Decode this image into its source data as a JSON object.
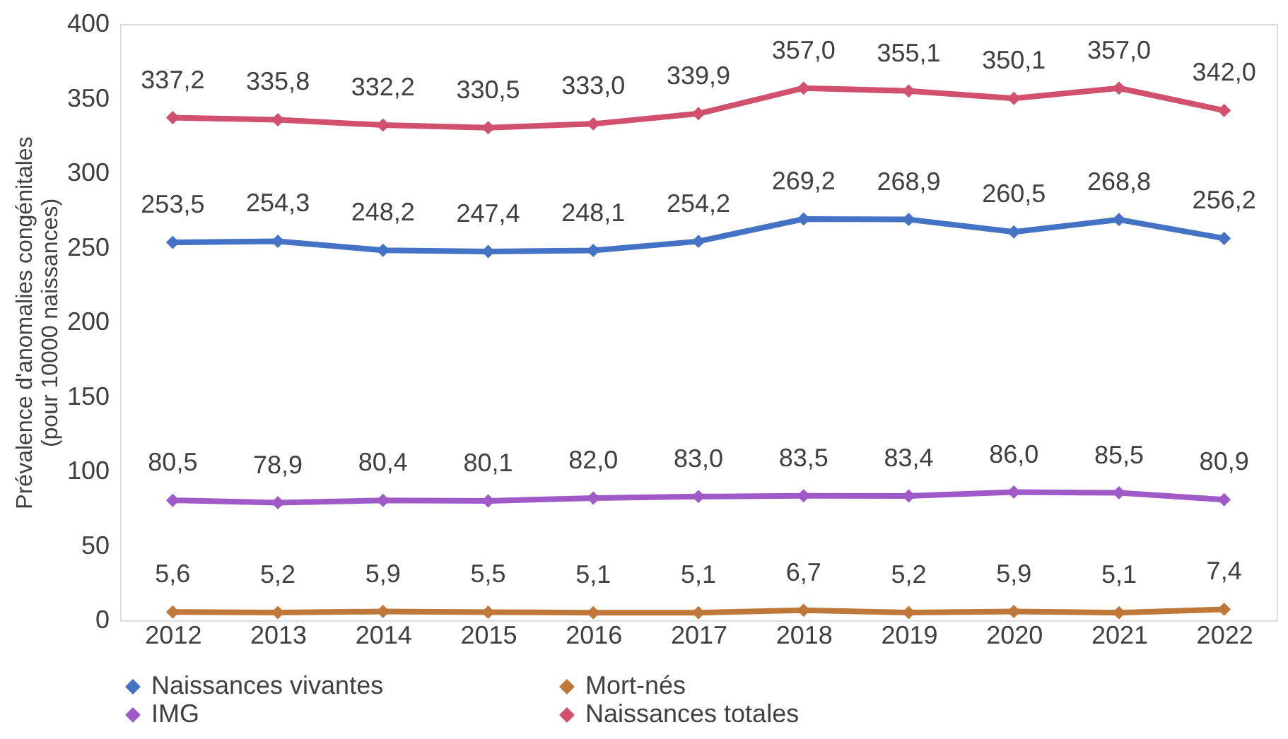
{
  "chart_data": {
    "type": "line",
    "ylabel": "Prévalence d'anomalies congénitales\n(pour 10000 naissances)",
    "categories": [
      "2012",
      "2013",
      "2014",
      "2015",
      "2016",
      "2017",
      "2018",
      "2019",
      "2020",
      "2021",
      "2022"
    ],
    "ylim": [
      0,
      400
    ],
    "yticks": [
      0,
      50,
      100,
      150,
      200,
      250,
      300,
      350,
      400
    ],
    "grid": false,
    "legend": "bottom",
    "marker": "diamond",
    "line_style": "solid",
    "series": [
      {
        "name": "Naissances vivantes",
        "color": "#4472c4",
        "values": [
          253.5,
          254.3,
          248.2,
          247.4,
          248.1,
          254.2,
          269.2,
          268.9,
          260.5,
          268.8,
          256.2
        ],
        "value_labels": [
          "253,5",
          "254,3",
          "248,2",
          "247,4",
          "248,1",
          "254,2",
          "269,2",
          "268,9",
          "260,5",
          "268,8",
          "256,2"
        ]
      },
      {
        "name": "Mort-nés",
        "color": "#c0783a",
        "values": [
          5.6,
          5.2,
          5.9,
          5.5,
          5.1,
          5.1,
          6.7,
          5.2,
          5.9,
          5.1,
          7.4
        ],
        "value_labels": [
          "5,6",
          "5,2",
          "5,9",
          "5,5",
          "5,1",
          "5,1",
          "6,7",
          "5,2",
          "5,9",
          "5,1",
          "7,4"
        ]
      },
      {
        "name": "IMG",
        "color": "#a05ac8",
        "values": [
          80.5,
          78.9,
          80.4,
          80.1,
          82.0,
          83.0,
          83.5,
          83.4,
          86.0,
          85.5,
          80.9
        ],
        "value_labels": [
          "80,5",
          "78,9",
          "80,4",
          "80,1",
          "82,0",
          "83,0",
          "83,5",
          "83,4",
          "86,0",
          "85,5",
          "80,9"
        ]
      },
      {
        "name": "Naissances totales",
        "color": "#d0506e",
        "values": [
          337.2,
          335.8,
          332.2,
          330.5,
          333.0,
          339.9,
          357.0,
          355.1,
          350.1,
          357.0,
          342.0
        ],
        "value_labels": [
          "337,2",
          "335,8",
          "332,2",
          "330,5",
          "333,0",
          "339,9",
          "357,0",
          "355,1",
          "350,1",
          "357,0",
          "342,0"
        ]
      }
    ]
  }
}
